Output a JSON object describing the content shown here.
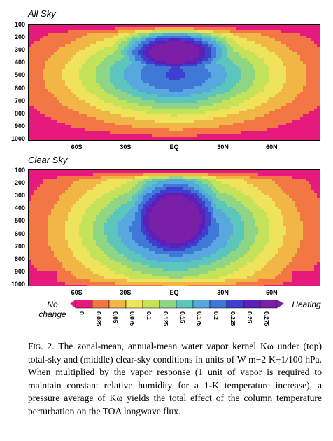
{
  "chart_data": [
    {
      "type": "heatmap",
      "title": "All Sky",
      "y_ticks": [
        "100",
        "200",
        "300",
        "400",
        "500",
        "600",
        "700",
        "800",
        "900",
        "1000"
      ],
      "x_ticks": [
        "60S",
        "30S",
        "EQ",
        "30N",
        "60N"
      ],
      "y_range": [
        100,
        1000
      ],
      "x_range_deg": [
        -90,
        90
      ],
      "max_level": 0.275,
      "max_location": {
        "lat": 0,
        "pressure_hpa": 300
      }
    },
    {
      "type": "heatmap",
      "title": "Clear Sky",
      "y_ticks": [
        "100",
        "200",
        "300",
        "400",
        "500",
        "600",
        "700",
        "800",
        "900",
        "1000"
      ],
      "x_ticks": [
        "60S",
        "30S",
        "EQ",
        "30N",
        "60N"
      ],
      "y_range": [
        100,
        1000
      ],
      "x_range_deg": [
        -90,
        90
      ],
      "max_level": 0.275,
      "max_location": {
        "lat": 0,
        "pressure_hpa": 400
      }
    }
  ],
  "colorbar": {
    "left_label_line1": "No",
    "left_label_line2": "change",
    "right_label": "Heating",
    "ticks": [
      "0",
      "0.025",
      "0.05",
      "0.075",
      "0.1",
      "0.125",
      "0.15",
      "0.175",
      "0.2",
      "0.225",
      "0.25",
      "0.275"
    ],
    "colors": [
      "#e6197d",
      "#f27744",
      "#f2b646",
      "#eee35a",
      "#c4e25a",
      "#8fd684",
      "#5cc6bd",
      "#58a8e0",
      "#3f78d6",
      "#3f3fcf",
      "#5c1fb8",
      "#7a1fa8"
    ]
  },
  "caption": {
    "fig_label": "Fig. 2.",
    "text": "The zonal-mean, annual-mean water vapor kernel Kω under (top) total-sky and (middle) clear-sky conditions in units of W m−2 K−1/100 hPa. When multiplied by the vapor response (1 unit of vapor is required to maintain constant relative humidity for a 1-K temperature increase), a pressure average of Kω yields the total effect of the column temperature perturbation on the TOA longwave flux."
  }
}
